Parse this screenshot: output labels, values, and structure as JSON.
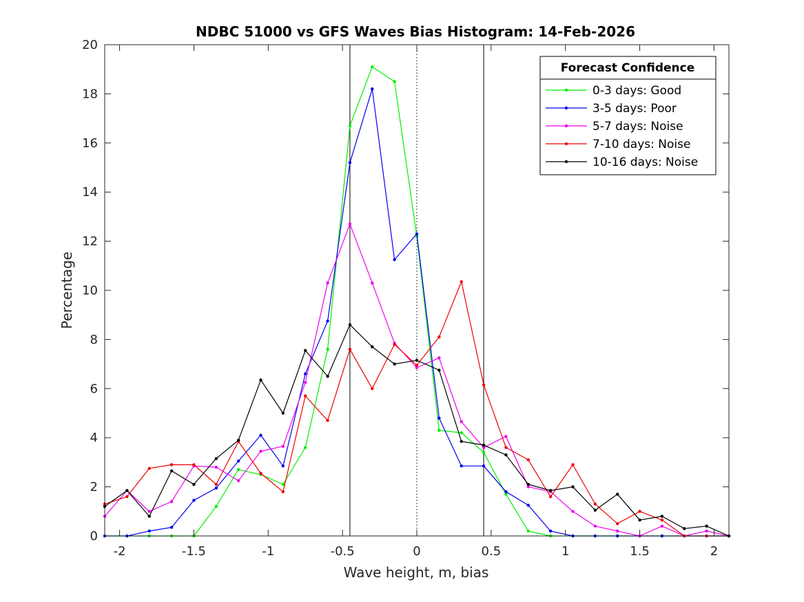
{
  "chart_data": {
    "type": "line",
    "title": "NDBC 51000 vs GFS Waves Bias Histogram: 14-Feb-2026",
    "xlabel": "Wave height, m, bias",
    "ylabel": "Percentage",
    "xlim": [
      -2.1,
      2.1
    ],
    "ylim": [
      0,
      20
    ],
    "xticks": [
      -2,
      -1.5,
      -1,
      -0.5,
      0,
      0.5,
      1,
      1.5,
      2
    ],
    "xtick_labels": [
      "-2",
      "-1.5",
      "-1",
      "-0.5",
      "0",
      "0.5",
      "1",
      "1.5",
      "2"
    ],
    "yticks": [
      0,
      2,
      4,
      6,
      8,
      10,
      12,
      14,
      16,
      18,
      20
    ],
    "ytick_labels": [
      "0",
      "2",
      "4",
      "6",
      "8",
      "10",
      "12",
      "14",
      "16",
      "18",
      "20"
    ],
    "grid": false,
    "reference_lines": [
      {
        "x": -0.45,
        "style": "solid"
      },
      {
        "x": 0,
        "style": "dotted"
      },
      {
        "x": 0.45,
        "style": "solid"
      }
    ],
    "legend": {
      "title": "Forecast Confidence",
      "position": "top-right"
    },
    "x": [
      -2.1,
      -1.95,
      -1.8,
      -1.65,
      -1.5,
      -1.35,
      -1.2,
      -1.05,
      -0.9,
      -0.75,
      -0.6,
      -0.45,
      -0.3,
      -0.15,
      0,
      0.15,
      0.3,
      0.45,
      0.6,
      0.75,
      0.9,
      1.05,
      1.2,
      1.35,
      1.5,
      1.65,
      1.8,
      1.95,
      2.1
    ],
    "series": [
      {
        "name": "0-3 days: Good",
        "color": "#00ee00",
        "values": [
          0,
          0,
          0,
          0,
          0,
          1.2,
          2.7,
          2.5,
          2.1,
          3.6,
          7.6,
          16.7,
          19.1,
          18.5,
          12.2,
          4.3,
          4.2,
          3.4,
          1.7,
          0.2,
          0,
          0,
          0,
          0,
          0,
          0,
          0,
          0,
          0
        ]
      },
      {
        "name": "3-5 days: Poor",
        "color": "#0000ee",
        "values": [
          0,
          0,
          0.2,
          0.35,
          1.45,
          1.95,
          3.05,
          4.1,
          2.85,
          6.6,
          8.75,
          15.2,
          18.2,
          11.25,
          12.3,
          4.8,
          2.85,
          2.85,
          1.8,
          1.25,
          0.2,
          0,
          0,
          0,
          0,
          0,
          0,
          0,
          0
        ]
      },
      {
        "name": "5-7 days: Noise",
        "color": "#ee00ee",
        "values": [
          0.8,
          1.85,
          1.0,
          1.4,
          2.85,
          2.8,
          2.25,
          3.45,
          3.65,
          6.25,
          10.3,
          12.7,
          10.3,
          7.85,
          6.85,
          7.25,
          4.65,
          3.6,
          4.05,
          2.0,
          1.8,
          1.0,
          0.4,
          0.2,
          0,
          0.4,
          0,
          0.2,
          0
        ]
      },
      {
        "name": "7-10 days: Noise",
        "color": "#ee0000",
        "values": [
          1.3,
          1.6,
          2.75,
          2.9,
          2.9,
          2.1,
          3.85,
          2.55,
          1.8,
          5.7,
          4.7,
          7.6,
          6.0,
          7.8,
          6.95,
          8.1,
          10.35,
          6.15,
          3.6,
          3.1,
          1.6,
          2.9,
          1.3,
          0.5,
          1.0,
          0.65,
          0,
          0,
          0
        ]
      },
      {
        "name": "10-16 days: Noise",
        "color": "#000000",
        "values": [
          1.2,
          1.85,
          0.8,
          2.65,
          2.1,
          3.15,
          3.9,
          6.35,
          5.0,
          7.55,
          6.5,
          8.6,
          7.7,
          7.0,
          7.15,
          6.75,
          3.85,
          3.7,
          3.3,
          2.1,
          1.85,
          2.0,
          1.05,
          1.7,
          0.65,
          0.8,
          0.3,
          0.4,
          0
        ]
      }
    ]
  }
}
